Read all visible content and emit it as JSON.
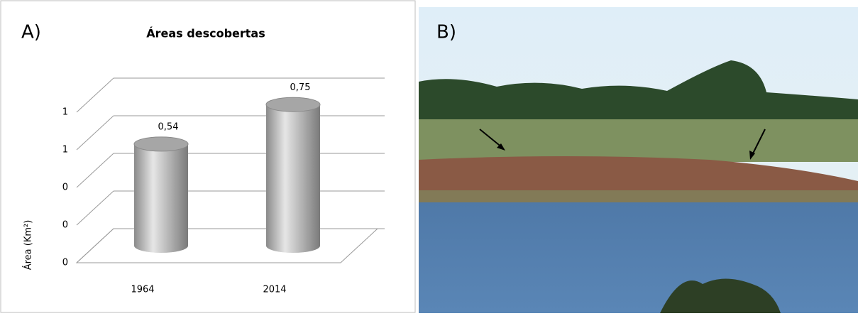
{
  "panel_a_label": "A)",
  "panel_b_label": "B)",
  "chart_data": {
    "type": "bar",
    "title": "Áreas descobertas",
    "y_label": "Área (Km²)",
    "categories": [
      "1964",
      "2014"
    ],
    "values": [
      0.54,
      0.75
    ],
    "value_labels": [
      "0,54",
      "0,75"
    ],
    "color": "#a6a6a6",
    "ylim": [
      0,
      0.8
    ],
    "yticks": [
      0,
      {
        "value": 0.2,
        "label": "0"
      },
      {
        "value": 0.4,
        "label": "0"
      },
      {
        "value": 0.6,
        "label": "1"
      },
      {
        "value": 0.8,
        "label": "1"
      }
    ],
    "grid": true
  }
}
